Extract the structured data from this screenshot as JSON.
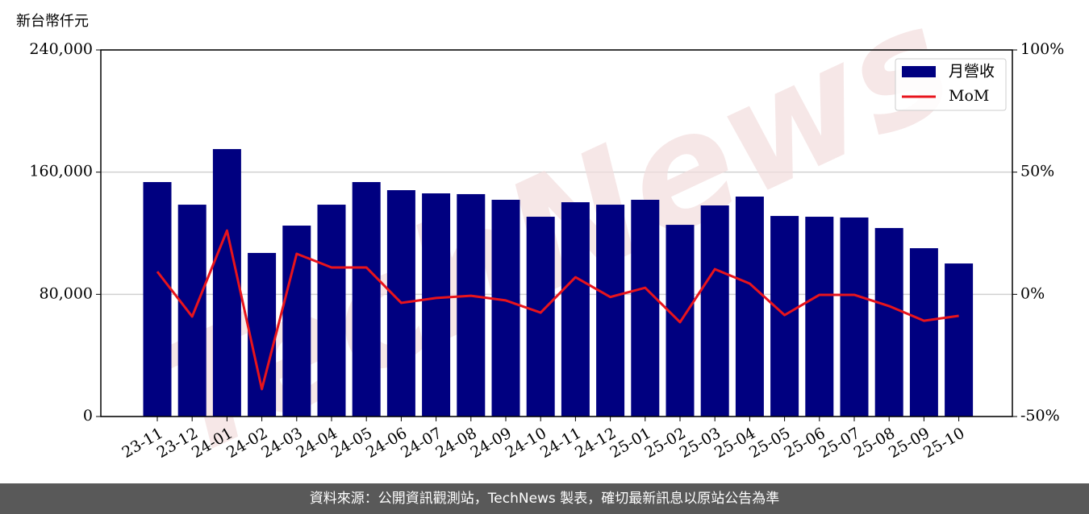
{
  "chart_data": {
    "type": "bar",
    "y_label": "新台幣仟元",
    "watermark": "TechNews",
    "categories": [
      "23-11",
      "23-12",
      "24-01",
      "24-02",
      "24-03",
      "24-04",
      "24-05",
      "24-06",
      "24-07",
      "24-08",
      "24-09",
      "24-10",
      "24-11",
      "24-12",
      "25-01",
      "25-02",
      "25-03",
      "25-04",
      "25-05",
      "25-06",
      "25-07",
      "25-08",
      "25-09",
      "25-10"
    ],
    "series": [
      {
        "name": "月營收",
        "color": "#000080",
        "values": [
          153500,
          138700,
          175100,
          107100,
          125000,
          138700,
          153500,
          148200,
          146100,
          145600,
          141900,
          130800,
          140300,
          138700,
          141900,
          125500,
          138200,
          144000,
          131300,
          130800,
          130300,
          123400,
          110200,
          100200
        ]
      },
      {
        "name": "MoM",
        "type": "line",
        "axis": "y2",
        "color": "#e8141c",
        "values": [
          9.3,
          -9.1,
          26.1,
          -38.8,
          16.6,
          11.0,
          11.0,
          -3.5,
          -1.5,
          -0.6,
          -2.5,
          -7.5,
          7.0,
          -1.1,
          2.7,
          -11.4,
          10.3,
          4.4,
          -8.5,
          -0.2,
          -0.2,
          -4.8,
          -10.8,
          -8.8
        ]
      }
    ],
    "ylim": [
      0,
      240000
    ],
    "yticks": [
      0,
      {
        "value": 80000,
        "label": "80,000"
      },
      {
        "value": 160000,
        "label": "160,000"
      },
      {
        "value": 240000,
        "label": "240,000"
      }
    ],
    "y2lim": [
      -50,
      100
    ],
    "y2ticks": [
      {
        "value": -50,
        "label": "-50%"
      },
      {
        "value": 0,
        "label": "0%"
      },
      {
        "value": 50,
        "label": "50%"
      },
      {
        "value": 100,
        "label": "100%"
      }
    ],
    "grid": true,
    "legend": "upper right"
  },
  "footer": "資料來源：公開資訊觀測站，TechNews 製表，確切最新訊息以原站公告為準"
}
